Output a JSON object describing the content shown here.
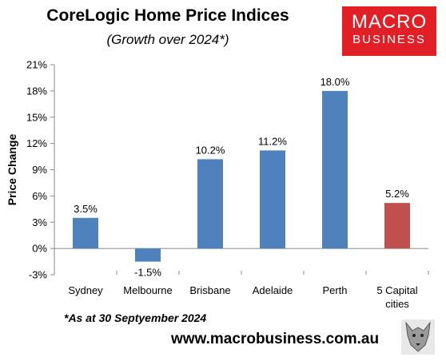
{
  "title": "CoreLogic Home Price Indices",
  "subtitle": "(Growth over 2024*)",
  "logo": {
    "line1": "MACRO",
    "line2": "BUSINESS",
    "color": "#e01f26"
  },
  "footnote": "*As at 30 Septyember 2024",
  "website": "www.macrobusiness.com.au",
  "chart_data": {
    "type": "bar",
    "categories": [
      [
        "Sydney"
      ],
      [
        "Melbourne"
      ],
      [
        "Brisbane"
      ],
      [
        "Adelaide"
      ],
      [
        "Perth"
      ],
      [
        "5 Capital",
        "cities"
      ]
    ],
    "values": [
      3.5,
      -1.5,
      10.2,
      11.2,
      18.0,
      5.2
    ],
    "data_labels": [
      "3.5%",
      "-1.5%",
      "10.2%",
      "11.2%",
      "18.0%",
      "5.2%"
    ],
    "bar_colors": [
      "#4f81bd",
      "#4f81bd",
      "#4f81bd",
      "#4f81bd",
      "#4f81bd",
      "#c0504d"
    ],
    "ylabel": "Price Change",
    "ylim": [
      -3,
      21
    ],
    "yticks": [
      -3,
      0,
      3,
      6,
      9,
      12,
      15,
      18,
      21
    ],
    "ytick_labels": [
      "-3%",
      "0%",
      "3%",
      "6%",
      "9%",
      "12%",
      "15%",
      "18%",
      "21%"
    ],
    "grid": false,
    "legend": "none"
  }
}
